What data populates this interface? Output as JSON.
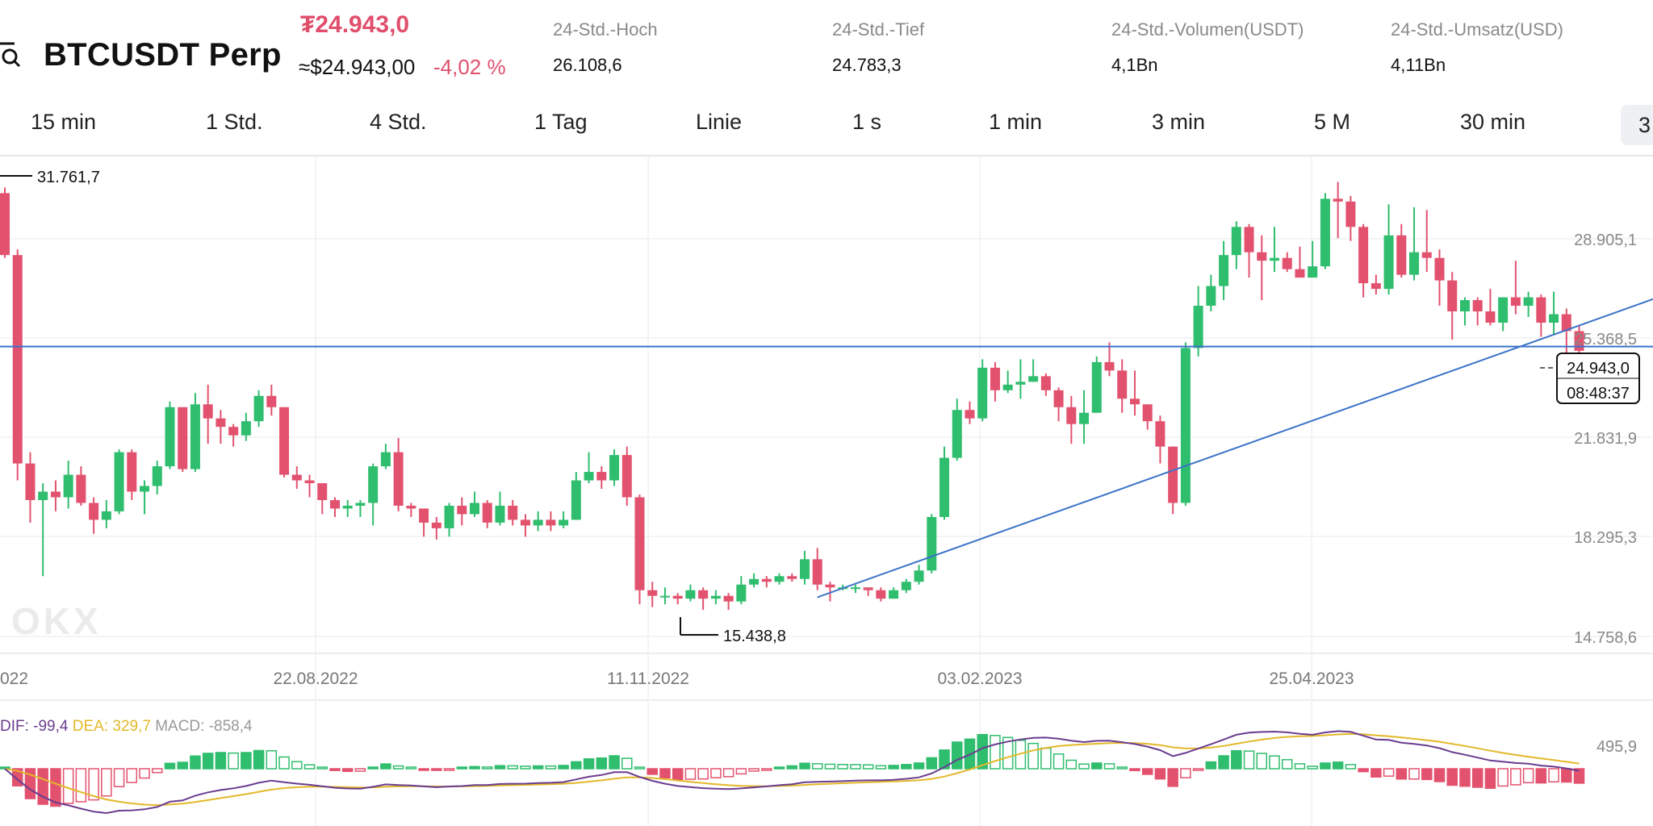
{
  "header": {
    "symbol": "BTCUSDT Perp",
    "price": "₮24.943,0",
    "price_usd": "≈$24.943,00",
    "change": "-4,02 %",
    "stats": [
      {
        "label": "24-Std.-Hoch",
        "value": "26.108,6"
      },
      {
        "label": "24-Std.-Tief",
        "value": "24.783,3"
      },
      {
        "label": "24-Std.-Volumen(USDT)",
        "value": "4,1Bn"
      },
      {
        "label": "24-Std.-Umsatz(USD)",
        "value": "4,11Bn"
      }
    ]
  },
  "timeframes": [
    "15 min",
    "1 Std.",
    "4 Std.",
    "1 Tag",
    "Linie",
    "1 s",
    "1 min",
    "3 min",
    "5 M",
    "30 min",
    "3"
  ],
  "colors": {
    "up": "#2fbd6e",
    "down": "#e2526f",
    "line": "#3b73c9",
    "dif": "#6a3d8f",
    "dea": "#e3b82a"
  },
  "chart": {
    "y_ticks": [
      "28.905,1",
      "25.368,5",
      "21.831,9",
      "18.295,3",
      "14.758,6"
    ],
    "x_ticks": [
      "022",
      "22.08.2022",
      "11.11.2022",
      "03.02.2023",
      "25.04.2023"
    ],
    "high_marker": "31.761,7",
    "low_marker": "15.438,8",
    "current_price": "24.943,0",
    "countdown": "08:48:37",
    "watermark": "OKX",
    "macd_label": {
      "dif": "DIF: -99,4",
      "dea": "DEA: 329,7",
      "macd": "MACD: -858,4"
    },
    "macd_tick": "495,9"
  },
  "chart_data": {
    "type": "candlestick",
    "symbol": "BTCUSDT Perp",
    "y_range": [
      14758.6,
      31761.7
    ],
    "x_labels": [
      "22.08.2022",
      "11.11.2022",
      "03.02.2023",
      "25.04.2023"
    ],
    "candles": [
      [
        30500,
        28300,
        30700,
        28200
      ],
      [
        28300,
        20900,
        28500,
        20300
      ],
      [
        20900,
        19600,
        21300,
        18800
      ],
      [
        19600,
        19900,
        20200,
        16900
      ],
      [
        19900,
        19700,
        20300,
        19200
      ],
      [
        19700,
        20500,
        21000,
        19300
      ],
      [
        20500,
        19500,
        20800,
        19400
      ],
      [
        19500,
        18900,
        19700,
        18400
      ],
      [
        18900,
        19200,
        19600,
        18600
      ],
      [
        19200,
        21300,
        21400,
        19100
      ],
      [
        21300,
        19900,
        21400,
        19600
      ],
      [
        19900,
        20100,
        20300,
        19100
      ],
      [
        20100,
        20800,
        21000,
        19800
      ],
      [
        20800,
        22900,
        23100,
        20700
      ],
      [
        22900,
        20700,
        22900,
        20600
      ],
      [
        20700,
        23000,
        23400,
        20600
      ],
      [
        23000,
        22500,
        23700,
        21600
      ],
      [
        22500,
        22200,
        22800,
        21600
      ],
      [
        22200,
        21900,
        22300,
        21500
      ],
      [
        21900,
        22400,
        22700,
        21700
      ],
      [
        22400,
        23300,
        23500,
        22200
      ],
      [
        23300,
        22900,
        23700,
        22600
      ],
      [
        22900,
        20500,
        22900,
        20400
      ],
      [
        20500,
        20300,
        20800,
        20000
      ],
      [
        20300,
        20200,
        20500,
        19700
      ],
      [
        20200,
        19600,
        20200,
        19100
      ],
      [
        19600,
        19300,
        19700,
        19000
      ],
      [
        19300,
        19400,
        19600,
        19000
      ],
      [
        19400,
        19500,
        19600,
        19000
      ],
      [
        19500,
        20800,
        20900,
        18700
      ],
      [
        20800,
        21300,
        21600,
        20700
      ],
      [
        21300,
        19400,
        21800,
        19200
      ],
      [
        19400,
        19300,
        19500,
        19000
      ],
      [
        19300,
        18800,
        19300,
        18300
      ],
      [
        18800,
        18600,
        19000,
        18200
      ],
      [
        18600,
        19400,
        19500,
        18300
      ],
      [
        19400,
        19100,
        19700,
        18700
      ],
      [
        19100,
        19500,
        19900,
        19000
      ],
      [
        19500,
        18800,
        19600,
        18600
      ],
      [
        18800,
        19400,
        19900,
        18700
      ],
      [
        19400,
        18900,
        19600,
        18700
      ],
      [
        18900,
        18700,
        19100,
        18300
      ],
      [
        18700,
        18900,
        19200,
        18500
      ],
      [
        18900,
        18700,
        19200,
        18500
      ],
      [
        18700,
        18900,
        19200,
        18600
      ],
      [
        18900,
        20300,
        20600,
        18900
      ],
      [
        20300,
        20600,
        21300,
        20200
      ],
      [
        20600,
        20300,
        20800,
        20000
      ],
      [
        20300,
        21200,
        21400,
        20100
      ],
      [
        21200,
        19700,
        21500,
        19400
      ],
      [
        19700,
        16400,
        19800,
        15900
      ],
      [
        16400,
        16200,
        16700,
        15800
      ],
      [
        16200,
        16200,
        16500,
        15900
      ],
      [
        16200,
        16100,
        16300,
        15900
      ],
      [
        16100,
        16400,
        16600,
        16000
      ],
      [
        16400,
        16100,
        16500,
        15700
      ],
      [
        16100,
        16200,
        16400,
        15900
      ],
      [
        16200,
        16000,
        16300,
        15700
      ],
      [
        16000,
        16600,
        16900,
        15900
      ],
      [
        16600,
        16800,
        17000,
        16500
      ],
      [
        16800,
        16700,
        16900,
        16500
      ],
      [
        16700,
        16900,
        17000,
        16600
      ],
      [
        16900,
        16800,
        17000,
        16700
      ],
      [
        16800,
        17500,
        17800,
        16600
      ],
      [
        17500,
        16600,
        17900,
        16400
      ],
      [
        16600,
        16500,
        16700,
        16000
      ],
      [
        16500,
        16500,
        16600,
        16400
      ],
      [
        16500,
        16500,
        16600,
        16300
      ],
      [
        16500,
        16400,
        16500,
        16200
      ],
      [
        16400,
        16100,
        16500,
        16000
      ],
      [
        16100,
        16400,
        16500,
        16100
      ],
      [
        16400,
        16700,
        16800,
        16300
      ],
      [
        16700,
        17100,
        17300,
        16600
      ],
      [
        17100,
        19000,
        19100,
        17000
      ],
      [
        19000,
        21100,
        21500,
        18900
      ],
      [
        21100,
        22800,
        23200,
        21000
      ],
      [
        22800,
        22500,
        23100,
        22300
      ],
      [
        22500,
        24300,
        24600,
        22400
      ],
      [
        24300,
        23500,
        24500,
        23100
      ],
      [
        23500,
        23700,
        24200,
        23400
      ],
      [
        23700,
        23800,
        24600,
        23200
      ],
      [
        23800,
        24000,
        24600,
        23800
      ],
      [
        24000,
        23500,
        24100,
        23300
      ],
      [
        23500,
        22900,
        23600,
        22400
      ],
      [
        22900,
        22300,
        23300,
        21600
      ],
      [
        22300,
        22700,
        23500,
        21600
      ],
      [
        22700,
        24500,
        24700,
        22700
      ],
      [
        24500,
        24200,
        25200,
        24000
      ],
      [
        24200,
        23200,
        24600,
        22700
      ],
      [
        23200,
        23000,
        24200,
        22600
      ],
      [
        23000,
        22400,
        23000,
        22100
      ],
      [
        22400,
        21500,
        22600,
        20900
      ],
      [
        21500,
        19500,
        21500,
        19100
      ],
      [
        19500,
        25000,
        25200,
        19400
      ],
      [
        25000,
        26500,
        27200,
        24700
      ],
      [
        26500,
        27200,
        27600,
        26300
      ],
      [
        27200,
        28300,
        28800,
        26700
      ],
      [
        28300,
        29300,
        29500,
        27800
      ],
      [
        29300,
        28400,
        29400,
        27500
      ],
      [
        28400,
        28100,
        29000,
        26700
      ],
      [
        28100,
        28200,
        29300,
        27700
      ],
      [
        28200,
        27800,
        28400,
        27700
      ],
      [
        27800,
        27500,
        28600,
        27600
      ],
      [
        27500,
        27900,
        28800,
        27700
      ],
      [
        27900,
        30300,
        30500,
        27800
      ],
      [
        30300,
        30200,
        30900,
        28900
      ],
      [
        30200,
        29300,
        30400,
        28800
      ],
      [
        29300,
        27300,
        29400,
        26800
      ],
      [
        27300,
        27100,
        27600,
        26900
      ],
      [
        27100,
        29000,
        30100,
        26900
      ],
      [
        29000,
        27600,
        29400,
        27500
      ],
      [
        27600,
        28400,
        30000,
        27400
      ],
      [
        28400,
        28200,
        29900,
        27700
      ],
      [
        28200,
        27400,
        28500,
        26500
      ],
      [
        27400,
        26300,
        27700,
        25300
      ],
      [
        26300,
        26700,
        26800,
        25800
      ],
      [
        26700,
        26300,
        26800,
        25800
      ],
      [
        26300,
        25900,
        27100,
        25800
      ],
      [
        25900,
        26800,
        26800,
        25600
      ],
      [
        26800,
        26500,
        28100,
        26200
      ],
      [
        26500,
        26800,
        27000,
        26100
      ],
      [
        26800,
        25900,
        26900,
        25400
      ],
      [
        25900,
        26200,
        27000,
        25500
      ],
      [
        26200,
        25600,
        26400,
        24800
      ],
      [
        25600,
        24900,
        25800,
        24800
      ]
    ],
    "trendline": {
      "from": {
        "index": 64,
        "price": 16150
      },
      "to": {
        "index": 124,
        "price": 25800
      }
    },
    "horizontal_line": 25050,
    "macd": {
      "dif": -99.4,
      "dea": 329.7,
      "macd": -858.4
    }
  }
}
